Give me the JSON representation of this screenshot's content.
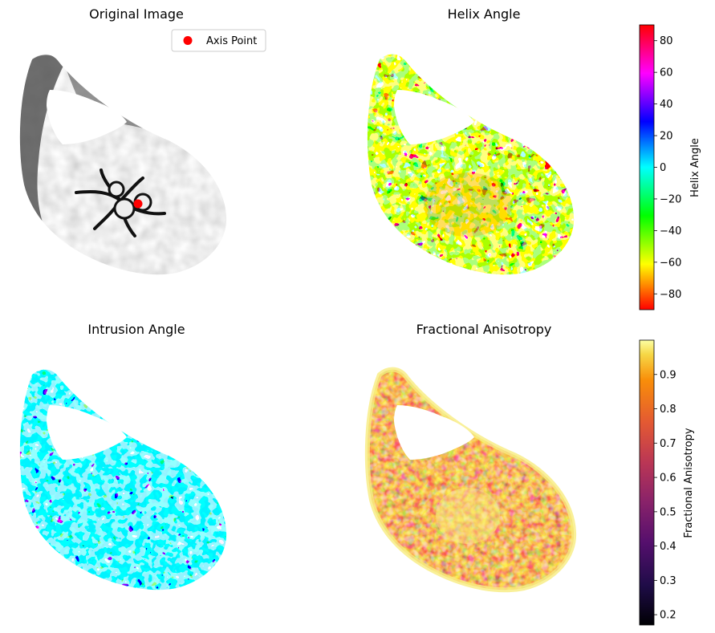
{
  "figure": {
    "panels": [
      {
        "title": "Original Image"
      },
      {
        "title": "Helix Angle"
      },
      {
        "title": "Intrusion Angle"
      },
      {
        "title": "Fractional Anisotropy"
      }
    ],
    "legend": {
      "label": "Axis Point",
      "color": "#ff0000",
      "placement": "upper right"
    },
    "colorbars": [
      {
        "label": "Helix Angle",
        "colormap": "hsv",
        "ticks": [
          "80",
          "60",
          "40",
          "20",
          "0",
          "−20",
          "−40",
          "−60",
          "−80"
        ]
      },
      {
        "label": "Fractional Anisotropy",
        "colormap": "inferno",
        "ticks": [
          "0.9",
          "0.8",
          "0.7",
          "0.6",
          "0.5",
          "0.4",
          "0.3",
          "0.2"
        ]
      }
    ]
  },
  "chart_data": [
    {
      "type": "heatmap",
      "title": "Original Image",
      "colormap": "gray",
      "annotation": {
        "label": "Axis Point",
        "marker": "circle",
        "color": "#ff0000"
      }
    },
    {
      "type": "heatmap",
      "title": "Helix Angle",
      "colormap": "hsv",
      "colorbar": {
        "label": "Helix Angle",
        "range": [
          -90,
          90
        ],
        "ticks": [
          -80,
          -60,
          -40,
          -20,
          0,
          20,
          40,
          60,
          80
        ]
      }
    },
    {
      "type": "heatmap",
      "title": "Intrusion Angle",
      "colormap": "hsv"
    },
    {
      "type": "heatmap",
      "title": "Fractional Anisotropy",
      "colormap": "inferno",
      "colorbar": {
        "label": "Fractional Anisotropy",
        "range": [
          0.17,
          1.0
        ],
        "ticks": [
          0.2,
          0.3,
          0.4,
          0.5,
          0.6,
          0.7,
          0.8,
          0.9
        ]
      }
    }
  ]
}
